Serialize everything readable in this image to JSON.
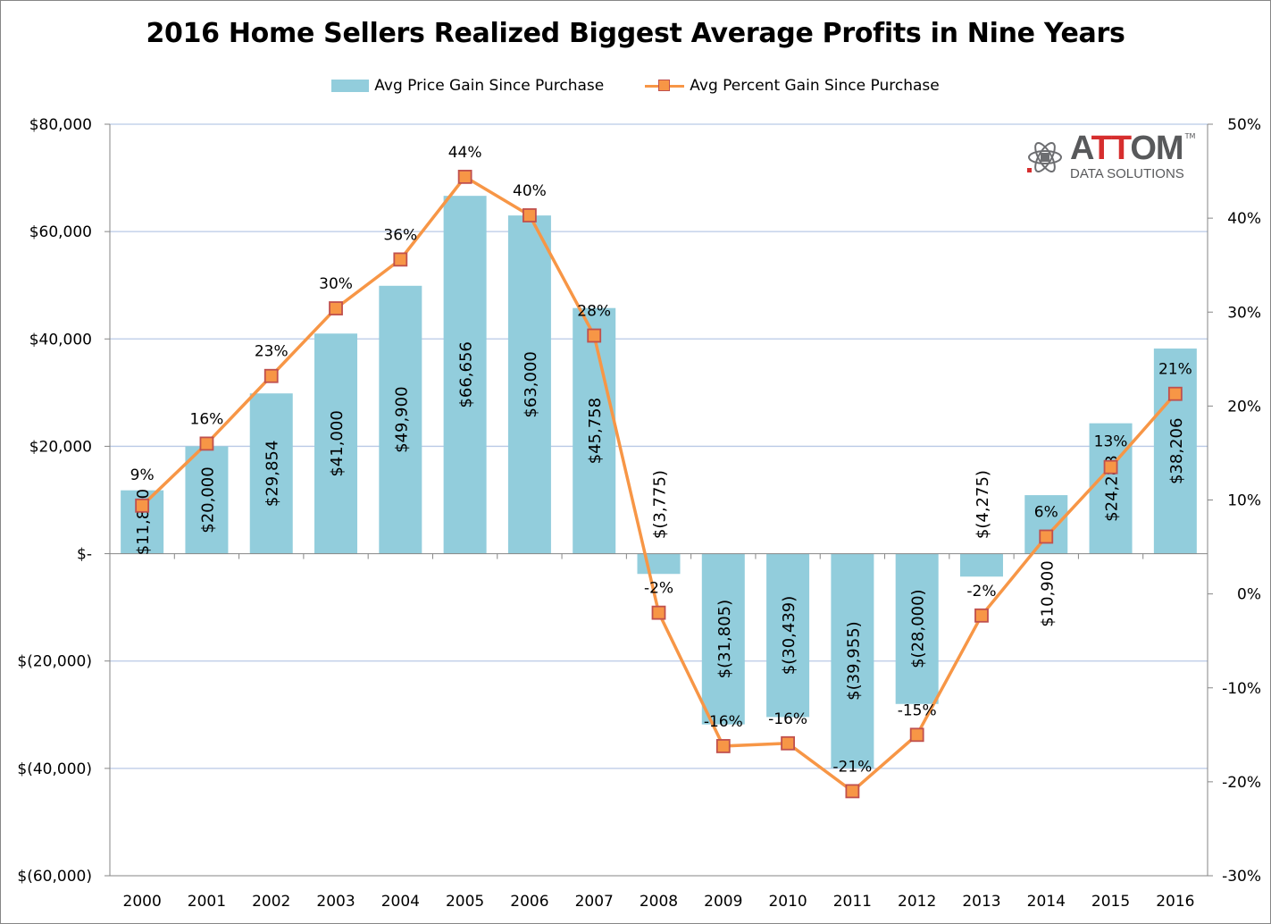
{
  "chart_data": {
    "type": "bar",
    "title": "2016 Home Sellers Realized Biggest Average Profits in Nine Years",
    "categories": [
      "2000",
      "2001",
      "2002",
      "2003",
      "2004",
      "2005",
      "2006",
      "2007",
      "2008",
      "2009",
      "2010",
      "2011",
      "2012",
      "2013",
      "2014",
      "2015",
      "2016"
    ],
    "series": [
      {
        "name": "Avg Price Gain Since Purchase",
        "type": "bar",
        "axis": "left",
        "color": "#92CDDC",
        "values": [
          11800,
          20000,
          29854,
          41000,
          49900,
          66656,
          63000,
          45758,
          -3775,
          -31805,
          -30439,
          -39955,
          -28000,
          -4275,
          10900,
          24288,
          38206
        ],
        "labels": [
          "$11,800",
          "$20,000",
          "$29,854",
          "$41,000",
          "$49,900",
          "$66,656",
          "$63,000",
          "$45,758",
          "$(3,775)",
          "$(31,805)",
          "$(30,439)",
          "$(39,955)",
          "$(28,000)",
          "$(4,275)",
          "$10,900",
          "$24,288",
          "$38,206"
        ]
      },
      {
        "name": "Avg Percent Gain Since Purchase",
        "type": "line",
        "axis": "right",
        "color": "#F79646",
        "marker_border": "#C0504D",
        "values": [
          9.4,
          16.0,
          23.2,
          30.4,
          35.6,
          44.4,
          40.3,
          27.5,
          -2.0,
          -16.2,
          -15.9,
          -21.0,
          -15.0,
          -2.3,
          6.1,
          13.5,
          21.3
        ],
        "labels": [
          "9%",
          "16%",
          "23%",
          "30%",
          "36%",
          "44%",
          "40%",
          "28%",
          "-2%",
          "-16%",
          "-16%",
          "-21%",
          "-15%",
          "-2%",
          "6%",
          "13%",
          "21%"
        ]
      }
    ],
    "ylim_left": [
      -60000,
      80000
    ],
    "ylim_right": [
      -30,
      50
    ],
    "yticks_left": [
      "$80,000",
      "$60,000",
      "$40,000",
      "$20,000",
      "$-",
      "$(20,000)",
      "$(40,000)",
      "$(60,000)"
    ],
    "yticks_left_values": [
      80000,
      60000,
      40000,
      20000,
      0,
      -20000,
      -40000,
      -60000
    ],
    "yticks_right": [
      "50%",
      "40%",
      "30%",
      "20%",
      "10%",
      "0%",
      "-10%",
      "-20%",
      "-30%"
    ],
    "yticks_right_values": [
      50,
      40,
      30,
      20,
      10,
      0,
      -10,
      -20,
      -30
    ],
    "grid": true,
    "gridline_color": "#B9C9E6",
    "legend_position": "top"
  },
  "logo": {
    "main_a": "A",
    "main_tt": "TT",
    "main_om": "OM",
    "sub": "DATA SOLUTIONS",
    "tm": "TM"
  }
}
